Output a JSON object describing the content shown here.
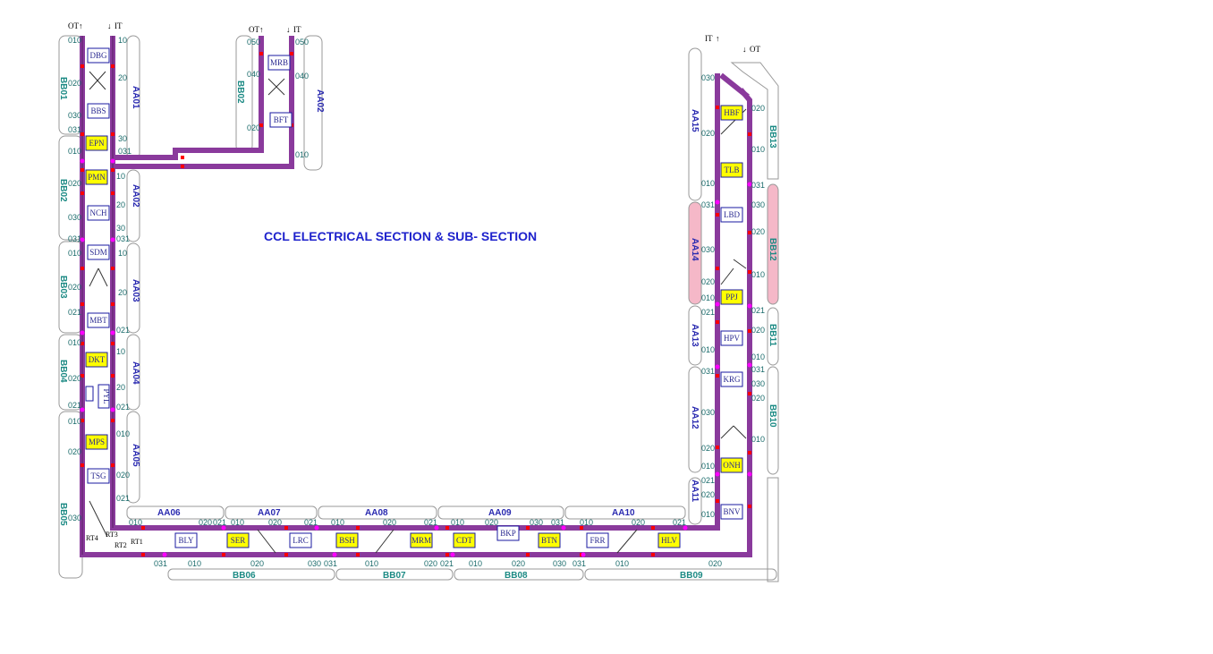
{
  "title": "CCL ELECTRICAL SECTION & SUB- SECTION",
  "colors": {
    "track": "#8a3a9c",
    "track_dark": "#5b1f66",
    "station_border": "#1a1aa0",
    "station_highlight": "#ffff00",
    "aa_label": "#2a2ab0",
    "bb_label": "#1c8a84",
    "pink_section": "#f5b8c8",
    "marker": "#ff0000",
    "junction": "#ff00ff"
  },
  "direction_labels": {
    "left_ot": "OT",
    "left_it": "IT",
    "mid_ot": "OT",
    "mid_it": "IT",
    "right_it": "IT",
    "right_ot": "OT"
  },
  "stations": [
    {
      "code": "DBG",
      "highlight": false
    },
    {
      "code": "BBS",
      "highlight": false
    },
    {
      "code": "EPN",
      "highlight": true
    },
    {
      "code": "PMN",
      "highlight": true
    },
    {
      "code": "NCH",
      "highlight": false
    },
    {
      "code": "SDM",
      "highlight": false
    },
    {
      "code": "MBT",
      "highlight": false
    },
    {
      "code": "DKT",
      "highlight": true
    },
    {
      "code": "PYL",
      "highlight": false
    },
    {
      "code": "MPS",
      "highlight": true
    },
    {
      "code": "TSG",
      "highlight": false
    },
    {
      "code": "MRB",
      "highlight": false
    },
    {
      "code": "BFT",
      "highlight": false
    },
    {
      "code": "BLY",
      "highlight": false
    },
    {
      "code": "SER",
      "highlight": true
    },
    {
      "code": "LRC",
      "highlight": false
    },
    {
      "code": "BSH",
      "highlight": true
    },
    {
      "code": "MRM",
      "highlight": true
    },
    {
      "code": "CDT",
      "highlight": true
    },
    {
      "code": "BKP",
      "highlight": false
    },
    {
      "code": "BTN",
      "highlight": true
    },
    {
      "code": "FRR",
      "highlight": false
    },
    {
      "code": "HLV",
      "highlight": true
    },
    {
      "code": "BNV",
      "highlight": false
    },
    {
      "code": "ONH",
      "highlight": true
    },
    {
      "code": "KRG",
      "highlight": false
    },
    {
      "code": "HPV",
      "highlight": false
    },
    {
      "code": "PPJ",
      "highlight": true
    },
    {
      "code": "LBD",
      "highlight": false
    },
    {
      "code": "TLB",
      "highlight": true
    },
    {
      "code": "HBF",
      "highlight": true
    }
  ],
  "sections_aa": [
    "AA01",
    "AA02",
    "AA02",
    "AA03",
    "AA04",
    "AA05",
    "AA06",
    "AA07",
    "AA08",
    "AA09",
    "AA10",
    "AA11",
    "AA12",
    "AA13",
    "AA14",
    "AA15"
  ],
  "sections_bb": [
    "BB01",
    "BB02",
    "BB02",
    "BB03",
    "BB04",
    "BB05",
    "BB06",
    "BB07",
    "BB08",
    "BB09",
    "BB10",
    "BB11",
    "BB12",
    "BB13"
  ],
  "subsections": {
    "aa01": [
      "10",
      "20",
      "30",
      "031"
    ],
    "aa02_top": [
      "050",
      "040",
      "010"
    ],
    "aa02": [
      "10",
      "20",
      "30",
      "031"
    ],
    "aa03": [
      "10",
      "20",
      "021"
    ],
    "aa04": [
      "10",
      "20",
      "021"
    ],
    "aa05": [
      "010",
      "020",
      "021"
    ],
    "aa06": [
      "010",
      "020",
      "021"
    ],
    "aa07": [
      "010",
      "020",
      "021"
    ],
    "aa08": [
      "010",
      "020",
      "021"
    ],
    "aa09": [
      "010",
      "020",
      "030",
      "031"
    ],
    "aa10": [
      "010",
      "020",
      "021"
    ],
    "aa11": [
      "021",
      "020",
      "010"
    ],
    "aa12": [
      "031",
      "030",
      "020",
      "010"
    ],
    "aa13": [
      "021",
      "010"
    ],
    "aa14": [
      "031",
      "030",
      "020",
      "010"
    ],
    "aa15": [
      "030",
      "020",
      "010"
    ],
    "bb01": [
      "010",
      "020",
      "030",
      "031"
    ],
    "bb02_top": [
      "050",
      "040",
      "020"
    ],
    "bb02": [
      "010",
      "020",
      "030",
      "031"
    ],
    "bb03": [
      "010",
      "020",
      "021"
    ],
    "bb04": [
      "010",
      "020",
      "021"
    ],
    "bb05": [
      "010",
      "020",
      "030"
    ],
    "bb06": [
      "031",
      "010",
      "020",
      "030"
    ],
    "bb07": [
      "031",
      "010",
      "020",
      "021"
    ],
    "bb08": [
      "010",
      "020",
      "030",
      "031"
    ],
    "bb09": [
      "010",
      "020"
    ],
    "bb10": [
      "031",
      "030",
      "020",
      "010"
    ],
    "bb11": [
      "021",
      "020",
      "010"
    ],
    "bb12": [
      "030",
      "020",
      "010"
    ],
    "bb13": [
      "020",
      "010",
      "031"
    ]
  },
  "route_labels": [
    "RT4",
    "RT3",
    "RT2",
    "RT1"
  ]
}
